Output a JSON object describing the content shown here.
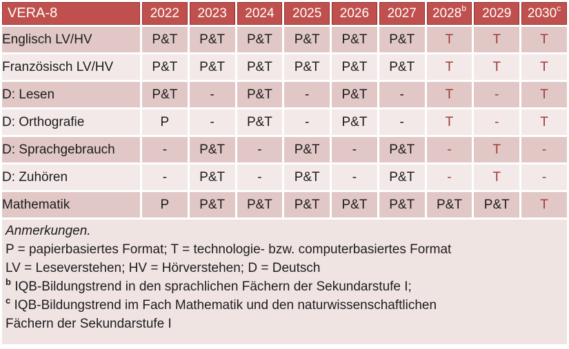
{
  "title": "VERA-8",
  "colors": {
    "header_bg": "#C0504D",
    "header_border": "#8E3230",
    "header_text": "#FFFFFF",
    "band_dark": "#E1C8C6",
    "band_light": "#F2E9E8",
    "notes_bg": "#F0E4E3",
    "body_text": "#1C1C1C",
    "highlight_text": "#9E3B36"
  },
  "table": {
    "corner_label": "VERA-8",
    "columns": [
      {
        "year": "2022",
        "sup": ""
      },
      {
        "year": "2023",
        "sup": ""
      },
      {
        "year": "2024",
        "sup": ""
      },
      {
        "year": "2025",
        "sup": ""
      },
      {
        "year": "2026",
        "sup": ""
      },
      {
        "year": "2027",
        "sup": ""
      },
      {
        "year": "2028",
        "sup": "b"
      },
      {
        "year": "2029",
        "sup": ""
      },
      {
        "year": "2030",
        "sup": "c"
      }
    ],
    "rows": [
      {
        "label": "Englisch LV/HV",
        "band": "dark",
        "cells": [
          {
            "v": "P&T",
            "hl": false
          },
          {
            "v": "P&T",
            "hl": false
          },
          {
            "v": "P&T",
            "hl": false
          },
          {
            "v": "P&T",
            "hl": false
          },
          {
            "v": "P&T",
            "hl": false
          },
          {
            "v": "P&T",
            "hl": false
          },
          {
            "v": "T",
            "hl": true
          },
          {
            "v": "T",
            "hl": true
          },
          {
            "v": "T",
            "hl": true
          }
        ]
      },
      {
        "label": "Französisch LV/HV",
        "band": "light",
        "cells": [
          {
            "v": "P&T",
            "hl": false
          },
          {
            "v": "P&T",
            "hl": false
          },
          {
            "v": "P&T",
            "hl": false
          },
          {
            "v": "P&T",
            "hl": false
          },
          {
            "v": "P&T",
            "hl": false
          },
          {
            "v": "P&T",
            "hl": false
          },
          {
            "v": "T",
            "hl": true
          },
          {
            "v": "T",
            "hl": true
          },
          {
            "v": "T",
            "hl": true
          }
        ]
      },
      {
        "label": "D: Lesen",
        "band": "dark",
        "cells": [
          {
            "v": "P&T",
            "hl": false
          },
          {
            "v": "-",
            "hl": false
          },
          {
            "v": "P&T",
            "hl": false
          },
          {
            "v": "-",
            "hl": false
          },
          {
            "v": "P&T",
            "hl": false
          },
          {
            "v": "-",
            "hl": false
          },
          {
            "v": "T",
            "hl": true
          },
          {
            "v": "-",
            "hl": true
          },
          {
            "v": "T",
            "hl": true
          }
        ]
      },
      {
        "label": "D: Orthografie",
        "band": "light",
        "cells": [
          {
            "v": "P",
            "hl": false
          },
          {
            "v": "-",
            "hl": false
          },
          {
            "v": "P&T",
            "hl": false
          },
          {
            "v": "-",
            "hl": false
          },
          {
            "v": "P&T",
            "hl": false
          },
          {
            "v": "-",
            "hl": false
          },
          {
            "v": "T",
            "hl": true
          },
          {
            "v": "-",
            "hl": true
          },
          {
            "v": "T",
            "hl": true
          }
        ]
      },
      {
        "label": "D: Sprachgebrauch",
        "band": "dark",
        "cells": [
          {
            "v": "-",
            "hl": false
          },
          {
            "v": "P&T",
            "hl": false
          },
          {
            "v": "-",
            "hl": false
          },
          {
            "v": "P&T",
            "hl": false
          },
          {
            "v": "-",
            "hl": false
          },
          {
            "v": "P&T",
            "hl": false
          },
          {
            "v": "-",
            "hl": true
          },
          {
            "v": "T",
            "hl": true
          },
          {
            "v": "-",
            "hl": true
          }
        ]
      },
      {
        "label": "D: Zuhören",
        "band": "light",
        "cells": [
          {
            "v": "-",
            "hl": false
          },
          {
            "v": "P&T",
            "hl": false
          },
          {
            "v": "-",
            "hl": false
          },
          {
            "v": "P&T",
            "hl": false
          },
          {
            "v": "-",
            "hl": false
          },
          {
            "v": "P&T",
            "hl": false
          },
          {
            "v": "-",
            "hl": true
          },
          {
            "v": "T",
            "hl": true
          },
          {
            "v": "-",
            "hl": true
          }
        ]
      },
      {
        "label": "Mathematik",
        "band": "dark",
        "cells": [
          {
            "v": "P",
            "hl": false
          },
          {
            "v": "P&T",
            "hl": false
          },
          {
            "v": "P&T",
            "hl": false
          },
          {
            "v": "P&T",
            "hl": false
          },
          {
            "v": "P&T",
            "hl": false
          },
          {
            "v": "P&T",
            "hl": false
          },
          {
            "v": "P&T",
            "hl": false
          },
          {
            "v": "P&T",
            "hl": false
          },
          {
            "v": "T",
            "hl": true
          }
        ]
      }
    ]
  },
  "notes": {
    "heading": "Anmerkungen.",
    "lines": [
      {
        "sup": "",
        "text": "P = papierbasiertes Format; T = technologie- bzw. computerbasiertes Format"
      },
      {
        "sup": "",
        "text": "LV = Leseverstehen; HV = Hörverstehen; D = Deutsch"
      },
      {
        "sup": "b",
        "text": "IQB-Bildungstrend in den sprachlichen Fächern der Sekundarstufe I;"
      },
      {
        "sup": "c",
        "text": "IQB-Bildungstrend im Fach Mathematik und den naturwissenschaftlichen"
      },
      {
        "sup": "",
        "text": "Fächern der Sekundarstufe I"
      }
    ]
  }
}
